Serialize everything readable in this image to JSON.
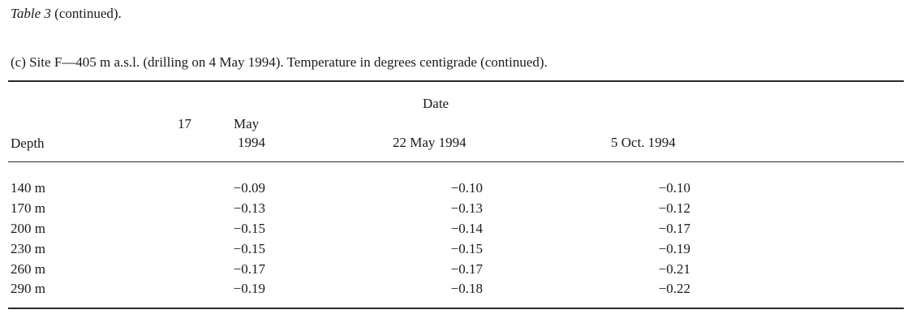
{
  "table_label": "Table 3",
  "table_suffix": "(continued).",
  "caption": "(c) Site F—405 m a.s.l. (drilling on 4 May 1994). Temperature in degrees centigrade (continued).",
  "header": {
    "date_group": "Date",
    "depth": "Depth",
    "col1_day": "17",
    "col1_month": "May",
    "col1_year": "1994",
    "col2": "22 May 1994",
    "col3": "5 Oct. 1994"
  },
  "rows": [
    {
      "depth": "140 m",
      "v1": "−0.09",
      "v2": "−0.10",
      "v3": "−0.10"
    },
    {
      "depth": "170 m",
      "v1": "−0.13",
      "v2": "−0.13",
      "v3": "−0.12"
    },
    {
      "depth": "200 m",
      "v1": "−0.15",
      "v2": "−0.14",
      "v3": "−0.17"
    },
    {
      "depth": "230 m",
      "v1": "−0.15",
      "v2": "−0.15",
      "v3": "−0.19"
    },
    {
      "depth": "260 m",
      "v1": "−0.17",
      "v2": "−0.17",
      "v3": "−0.21"
    },
    {
      "depth": "290 m",
      "v1": "−0.19",
      "v2": "−0.18",
      "v3": "−0.22"
    }
  ]
}
